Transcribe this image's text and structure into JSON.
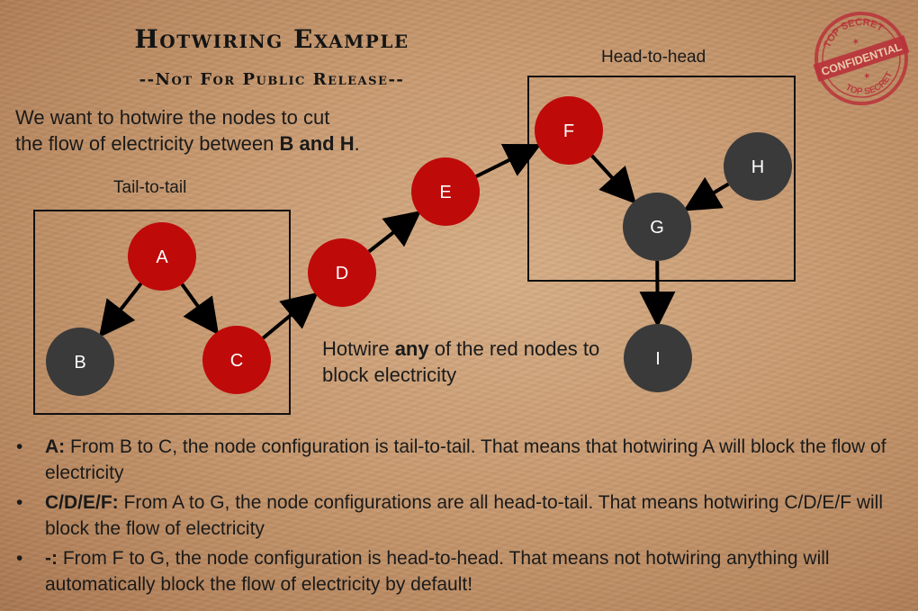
{
  "title": "Hotwiring Example",
  "subtitle": "--Not For Public Release--",
  "intro": {
    "line1": "We want to hotwire the nodes to cut",
    "line2_prefix": "the flow of electricity between ",
    "line2_bold": "B and H",
    "line2_suffix": "."
  },
  "stamp": {
    "top_text": "TOP SECRET",
    "banner": "CONFIDENTIAL",
    "bottom_text": "TOP SECRET",
    "color": "#b8323a"
  },
  "boxes": {
    "tail_to_tail": "Tail-to-tail",
    "head_to_head": "Head-to-head"
  },
  "colors": {
    "red_node": "#bf0a0a",
    "dark_node": "#3a3a3a",
    "edge": "#000000"
  },
  "nodes": [
    {
      "id": "A",
      "label": "A",
      "color": "red"
    },
    {
      "id": "B",
      "label": "B",
      "color": "dark"
    },
    {
      "id": "C",
      "label": "C",
      "color": "red"
    },
    {
      "id": "D",
      "label": "D",
      "color": "red"
    },
    {
      "id": "E",
      "label": "E",
      "color": "red"
    },
    {
      "id": "F",
      "label": "F",
      "color": "red"
    },
    {
      "id": "G",
      "label": "G",
      "color": "dark"
    },
    {
      "id": "H",
      "label": "H",
      "color": "dark"
    },
    {
      "id": "I",
      "label": "I",
      "color": "dark"
    }
  ],
  "edges": [
    {
      "from": "A",
      "to": "B"
    },
    {
      "from": "A",
      "to": "C"
    },
    {
      "from": "C",
      "to": "D"
    },
    {
      "from": "D",
      "to": "E"
    },
    {
      "from": "E",
      "to": "F"
    },
    {
      "from": "F",
      "to": "G"
    },
    {
      "from": "H",
      "to": "G"
    },
    {
      "from": "G",
      "to": "I"
    }
  ],
  "hint": {
    "prefix": "Hotwire ",
    "bold": "any",
    "suffix": " of the red nodes to block electricity"
  },
  "bullets": [
    {
      "bold": "A:",
      "text": " From B to C, the node configuration is tail-to-tail. That means that hotwiring A will block the flow of electricity"
    },
    {
      "bold": "C/D/E/F:",
      "text": " From A to G, the node configurations are all head-to-tail. That means hotwiring C/D/E/F will block the flow of electricity"
    },
    {
      "bold": "-:",
      "text": " From F to G, the node configuration is head-to-head. That means not hotwiring anything will automatically block the flow of electricity by default!"
    }
  ],
  "bullet_symbol": "•"
}
